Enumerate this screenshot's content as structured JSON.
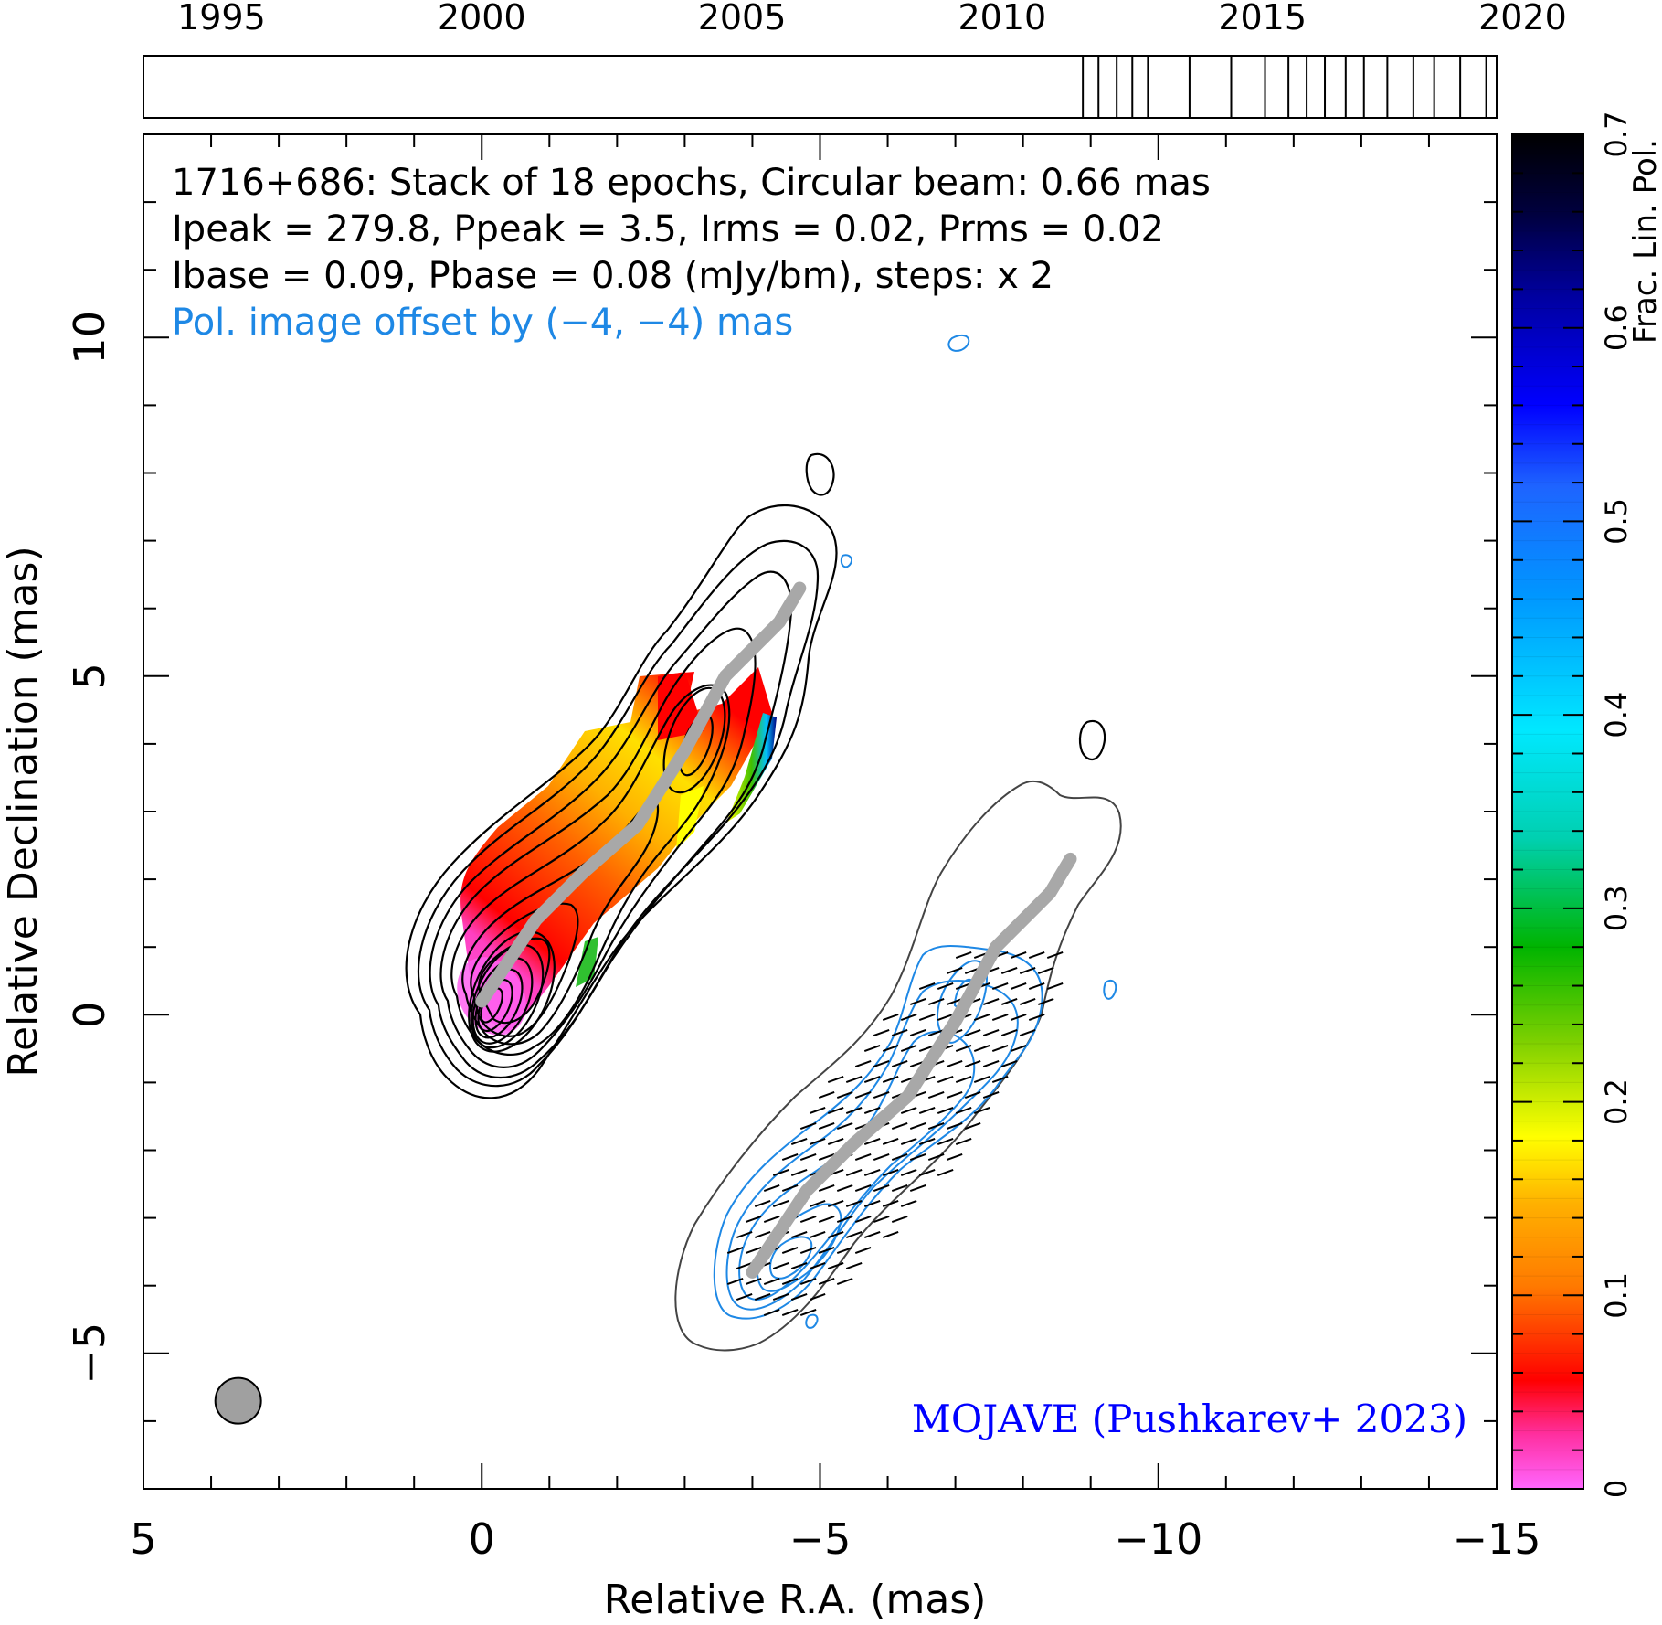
{
  "chart_data": {
    "type": "contour",
    "source": "1716+686",
    "header_lines": [
      "1716+686: Stack of 18 epochs, Circular beam: 0.66 mas",
      "Ipeak = 279.8, Ppeak = 3.5, Irms = 0.02, Prms = 0.02",
      "Ibase = 0.09, Pbase = 0.08 (mJy/bm), steps: x 2"
    ],
    "offset_note": "Pol. image offset by (−4, −4) mas",
    "credit": "MOJAVE (Pushkarev+ 2023)",
    "xlabel": "Relative R.A. (mas)",
    "ylabel": "Relative Declination (mas)",
    "colorbar_label": "Frac. Lin. Pol.",
    "xlim": [
      5,
      -15
    ],
    "ylim": [
      -7,
      13
    ],
    "x_ticks": [
      5,
      0,
      -5,
      -10,
      -15
    ],
    "x_tick_labels": [
      "5",
      "0",
      "−5",
      "−10",
      "−15"
    ],
    "y_ticks": [
      10,
      5,
      0,
      -5
    ],
    "y_tick_labels": [
      "10",
      "5",
      "0",
      "−5"
    ],
    "colorbar_range": [
      0,
      0.7
    ],
    "colorbar_ticks": [
      0,
      0.1,
      0.2,
      0.3,
      0.4,
      0.5,
      0.6,
      0.7
    ],
    "colorbar_tick_labels": [
      "0",
      "0.1",
      "0.2",
      "0.3",
      "0.4",
      "0.5",
      "0.6",
      "0.7"
    ],
    "timeline": {
      "range": [
        1993.5,
        2019.5
      ],
      "tick_years": [
        1995,
        2000,
        2005,
        2010,
        2015,
        2020
      ],
      "tick_labels": [
        "1995",
        "2000",
        "2005",
        "2010",
        "2015",
        "2020"
      ],
      "epochs": [
        2011.55,
        2011.85,
        2012.2,
        2012.5,
        2012.8,
        2013.6,
        2014.4,
        2015.05,
        2015.5,
        2015.85,
        2016.2,
        2016.6,
        2016.95,
        2017.4,
        2017.9,
        2018.3,
        2018.8,
        2019.3
      ]
    },
    "beam_fwhm_mas": 0.66,
    "beam_center": [
      3.6,
      -5.7
    ],
    "ridge_line": [
      [
        0,
        0.2
      ],
      [
        -0.8,
        1.4
      ],
      [
        -1.5,
        2.1
      ],
      [
        -2.3,
        2.8
      ],
      [
        -3.0,
        3.9
      ],
      [
        -3.6,
        5.0
      ],
      [
        -4.4,
        5.8
      ],
      [
        -4.7,
        6.3
      ]
    ],
    "pol_offset": [
      -4,
      -4
    ]
  }
}
